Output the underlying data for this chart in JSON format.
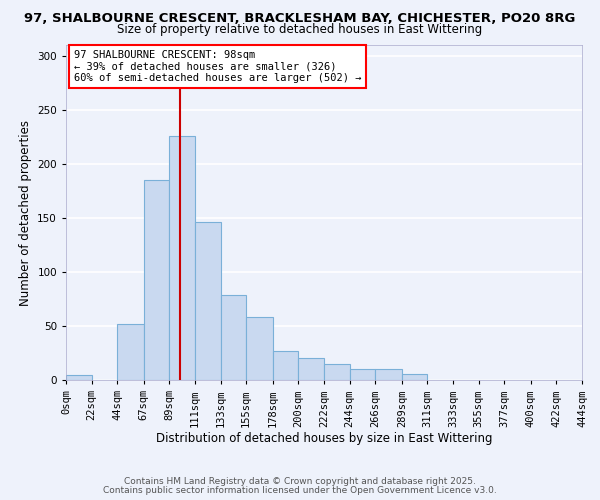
{
  "title": "97, SHALBOURNE CRESCENT, BRACKLESHAM BAY, CHICHESTER, PO20 8RG",
  "subtitle": "Size of property relative to detached houses in East Wittering",
  "xlabel": "Distribution of detached houses by size in East Wittering",
  "ylabel": "Number of detached properties",
  "bin_edges": [
    0,
    22,
    44,
    67,
    89,
    111,
    133,
    155,
    178,
    200,
    222,
    244,
    266,
    289,
    311,
    333,
    355,
    377,
    400,
    422,
    444
  ],
  "bin_labels": [
    "0sqm",
    "22sqm",
    "44sqm",
    "67sqm",
    "89sqm",
    "111sqm",
    "133sqm",
    "155sqm",
    "178sqm",
    "200sqm",
    "222sqm",
    "244sqm",
    "266sqm",
    "289sqm",
    "311sqm",
    "333sqm",
    "355sqm",
    "377sqm",
    "400sqm",
    "422sqm",
    "444sqm"
  ],
  "bar_heights": [
    5,
    0,
    52,
    185,
    226,
    146,
    79,
    58,
    27,
    20,
    15,
    10,
    10,
    6,
    0,
    0,
    0,
    0,
    0,
    0
  ],
  "bar_color": "#c9d9f0",
  "bar_edge_color": "#7ab0d8",
  "vline_x": 98,
  "vline_color": "#cc0000",
  "ylim": [
    0,
    310
  ],
  "yticks": [
    0,
    50,
    100,
    150,
    200,
    250,
    300
  ],
  "annotation_title": "97 SHALBOURNE CRESCENT: 98sqm",
  "annotation_line1": "← 39% of detached houses are smaller (326)",
  "annotation_line2": "60% of semi-detached houses are larger (502) →",
  "footer1": "Contains HM Land Registry data © Crown copyright and database right 2025.",
  "footer2": "Contains public sector information licensed under the Open Government Licence v3.0.",
  "bg_color": "#eef2fb",
  "grid_color": "#ffffff",
  "title_fontsize": 9.5,
  "subtitle_fontsize": 8.5,
  "label_fontsize": 8.5,
  "tick_fontsize": 7.5,
  "annotation_fontsize": 7.5,
  "footer_fontsize": 6.5
}
